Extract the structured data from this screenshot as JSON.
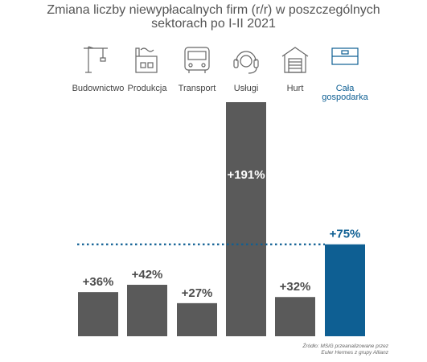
{
  "title_line1": "Zmiana liczby niewypłacalnych firm (r/r) w poszczególnych",
  "title_line2": "sektorach po I-II 2021",
  "source_line1": "Źródło: MSiG przeanalizowane przez",
  "source_line2": "Euler Hermes z grupy Allianz",
  "colors": {
    "bar": "#5a5a5a",
    "highlight": "#0e5f93",
    "label": "#4d4d4d"
  },
  "icons": [
    "crane-icon",
    "factory-icon",
    "bus-icon",
    "headset-icon",
    "warehouse-icon",
    "flag-icon"
  ],
  "chart_data": {
    "type": "bar",
    "title": "Zmiana liczby niewypłacalnych firm (r/r) w poszczególnych sektorach po I-II 2021",
    "categories": [
      "Budownictwo",
      "Produkcja",
      "Transport",
      "Usługi",
      "Hurt",
      "Cała gospodarka"
    ],
    "category_lines": [
      [
        "Budownictwo"
      ],
      [
        "Produkcja"
      ],
      [
        "Transport"
      ],
      [
        "Usługi"
      ],
      [
        "Hurt"
      ],
      [
        "Cała",
        "gospodarka"
      ]
    ],
    "values": [
      36,
      42,
      27,
      191,
      32,
      75
    ],
    "data_labels": [
      "+36%",
      "+42%",
      "+27%",
      "+191%",
      "+32%",
      "+75%"
    ],
    "highlight_index": 5,
    "reference_line": {
      "value": 75,
      "style": "dotted"
    },
    "ylim": [
      0,
      191
    ],
    "grid": false
  }
}
